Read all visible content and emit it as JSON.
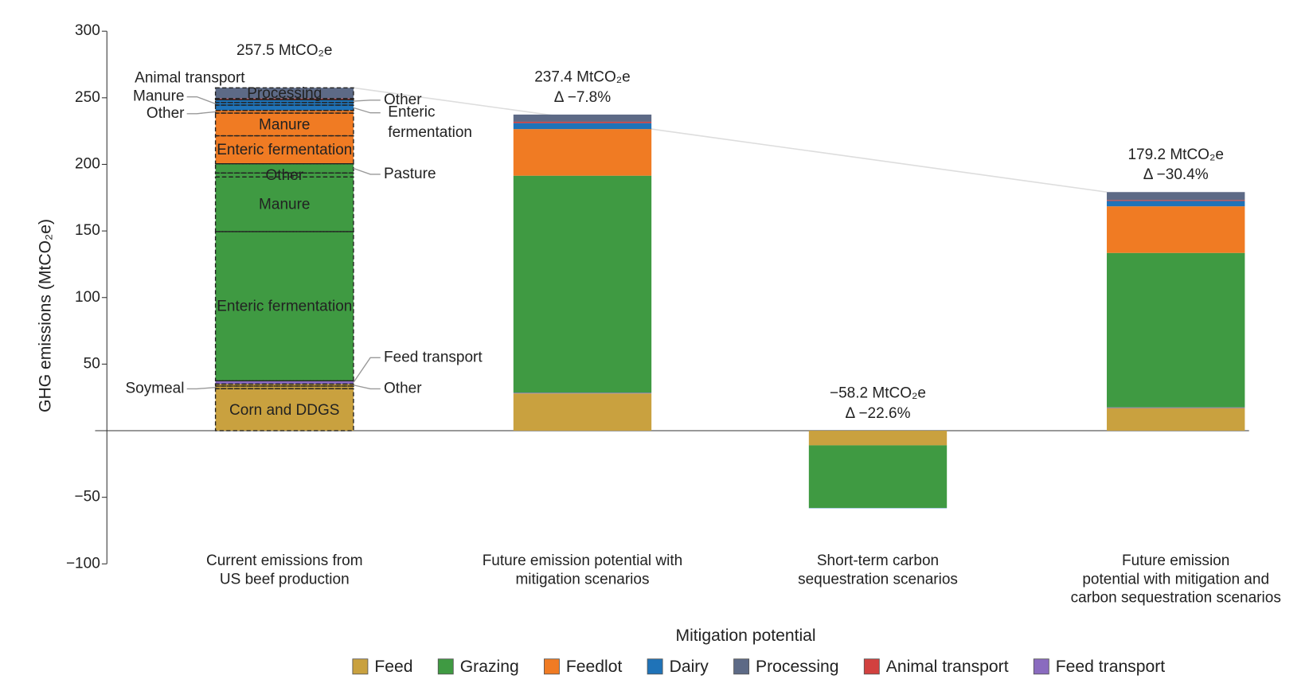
{
  "chart_data": {
    "type": "stacked-bar",
    "x_label": "Mitigation potential",
    "y_label": "GHG emissions (MtCO₂e)",
    "categories": [
      "Current emissions from\nUS beef production",
      "Future emission potential with\nmitigation scenarios",
      "Short-term carbon\nsequestration scenarios",
      "Future emission\npotential with mitigation and\ncarbon sequestration scenarios"
    ],
    "ylim": [
      -100,
      300
    ],
    "yticks": [
      {
        "value": -100,
        "label": "−100"
      },
      {
        "value": -50,
        "label": "−50"
      },
      50,
      100,
      150,
      200,
      250,
      300
    ],
    "series": [
      {
        "name": "Feed",
        "color": "#c9a13f",
        "values": [
          35,
          28,
          -11,
          17
        ]
      },
      {
        "name": "Grazing",
        "color": "#3f9a42",
        "values": [
          163,
          163,
          -47,
          116
        ]
      },
      {
        "name": "Feedlot",
        "color": "#f07b23",
        "values": [
          40,
          35,
          0,
          35
        ]
      },
      {
        "name": "Dairy",
        "color": "#1f73b8",
        "values": [
          8,
          4.5,
          -0.2,
          4
        ]
      },
      {
        "name": "Processing",
        "color": "#5d6a86",
        "values": [
          8,
          5.4,
          0,
          6
        ]
      },
      {
        "name": "Animal transport",
        "color": "#d2413f",
        "values": [
          1,
          1,
          0,
          0.7
        ]
      },
      {
        "name": "Feed transport",
        "color": "#8a6bbf",
        "values": [
          2.5,
          0.5,
          0,
          0.5
        ]
      }
    ],
    "totals": [
      257.5,
      237.4,
      -58.2,
      179.2
    ],
    "total_labels": [
      "257.5 MtCO₂e",
      "237.4 MtCO₂e",
      "−58.2 MtCO₂e",
      "179.2 MtCO₂e"
    ],
    "change_labels": [
      null,
      "Δ −7.8%",
      "Δ −22.6%",
      "Δ −30.4%"
    ],
    "breakdown": [
      {
        "name": "Corn and DDGS",
        "value": 31.5
      },
      {
        "name": "Soymeal",
        "value": 2
      },
      {
        "name": "Other",
        "value": 1.5
      },
      {
        "name": "Feed transport",
        "value": 2.5
      },
      {
        "name": "Enteric fermentation",
        "value": 112
      },
      {
        "name": "Manure",
        "value": 41
      },
      {
        "name": "Other",
        "value": 3
      },
      {
        "name": "Pasture",
        "value": 7
      },
      {
        "name": "Enteric fermentation",
        "value": 21
      },
      {
        "name": "Manure",
        "value": 17
      },
      {
        "name": "Other",
        "value": 2
      },
      {
        "name": "Enteric fermentation",
        "value": 4
      },
      {
        "name": "Manure",
        "value": 2
      },
      {
        "name": "Other",
        "value": 2
      },
      {
        "name": "Animal transport",
        "value": 1
      },
      {
        "name": "Processing",
        "value": 8
      }
    ]
  }
}
